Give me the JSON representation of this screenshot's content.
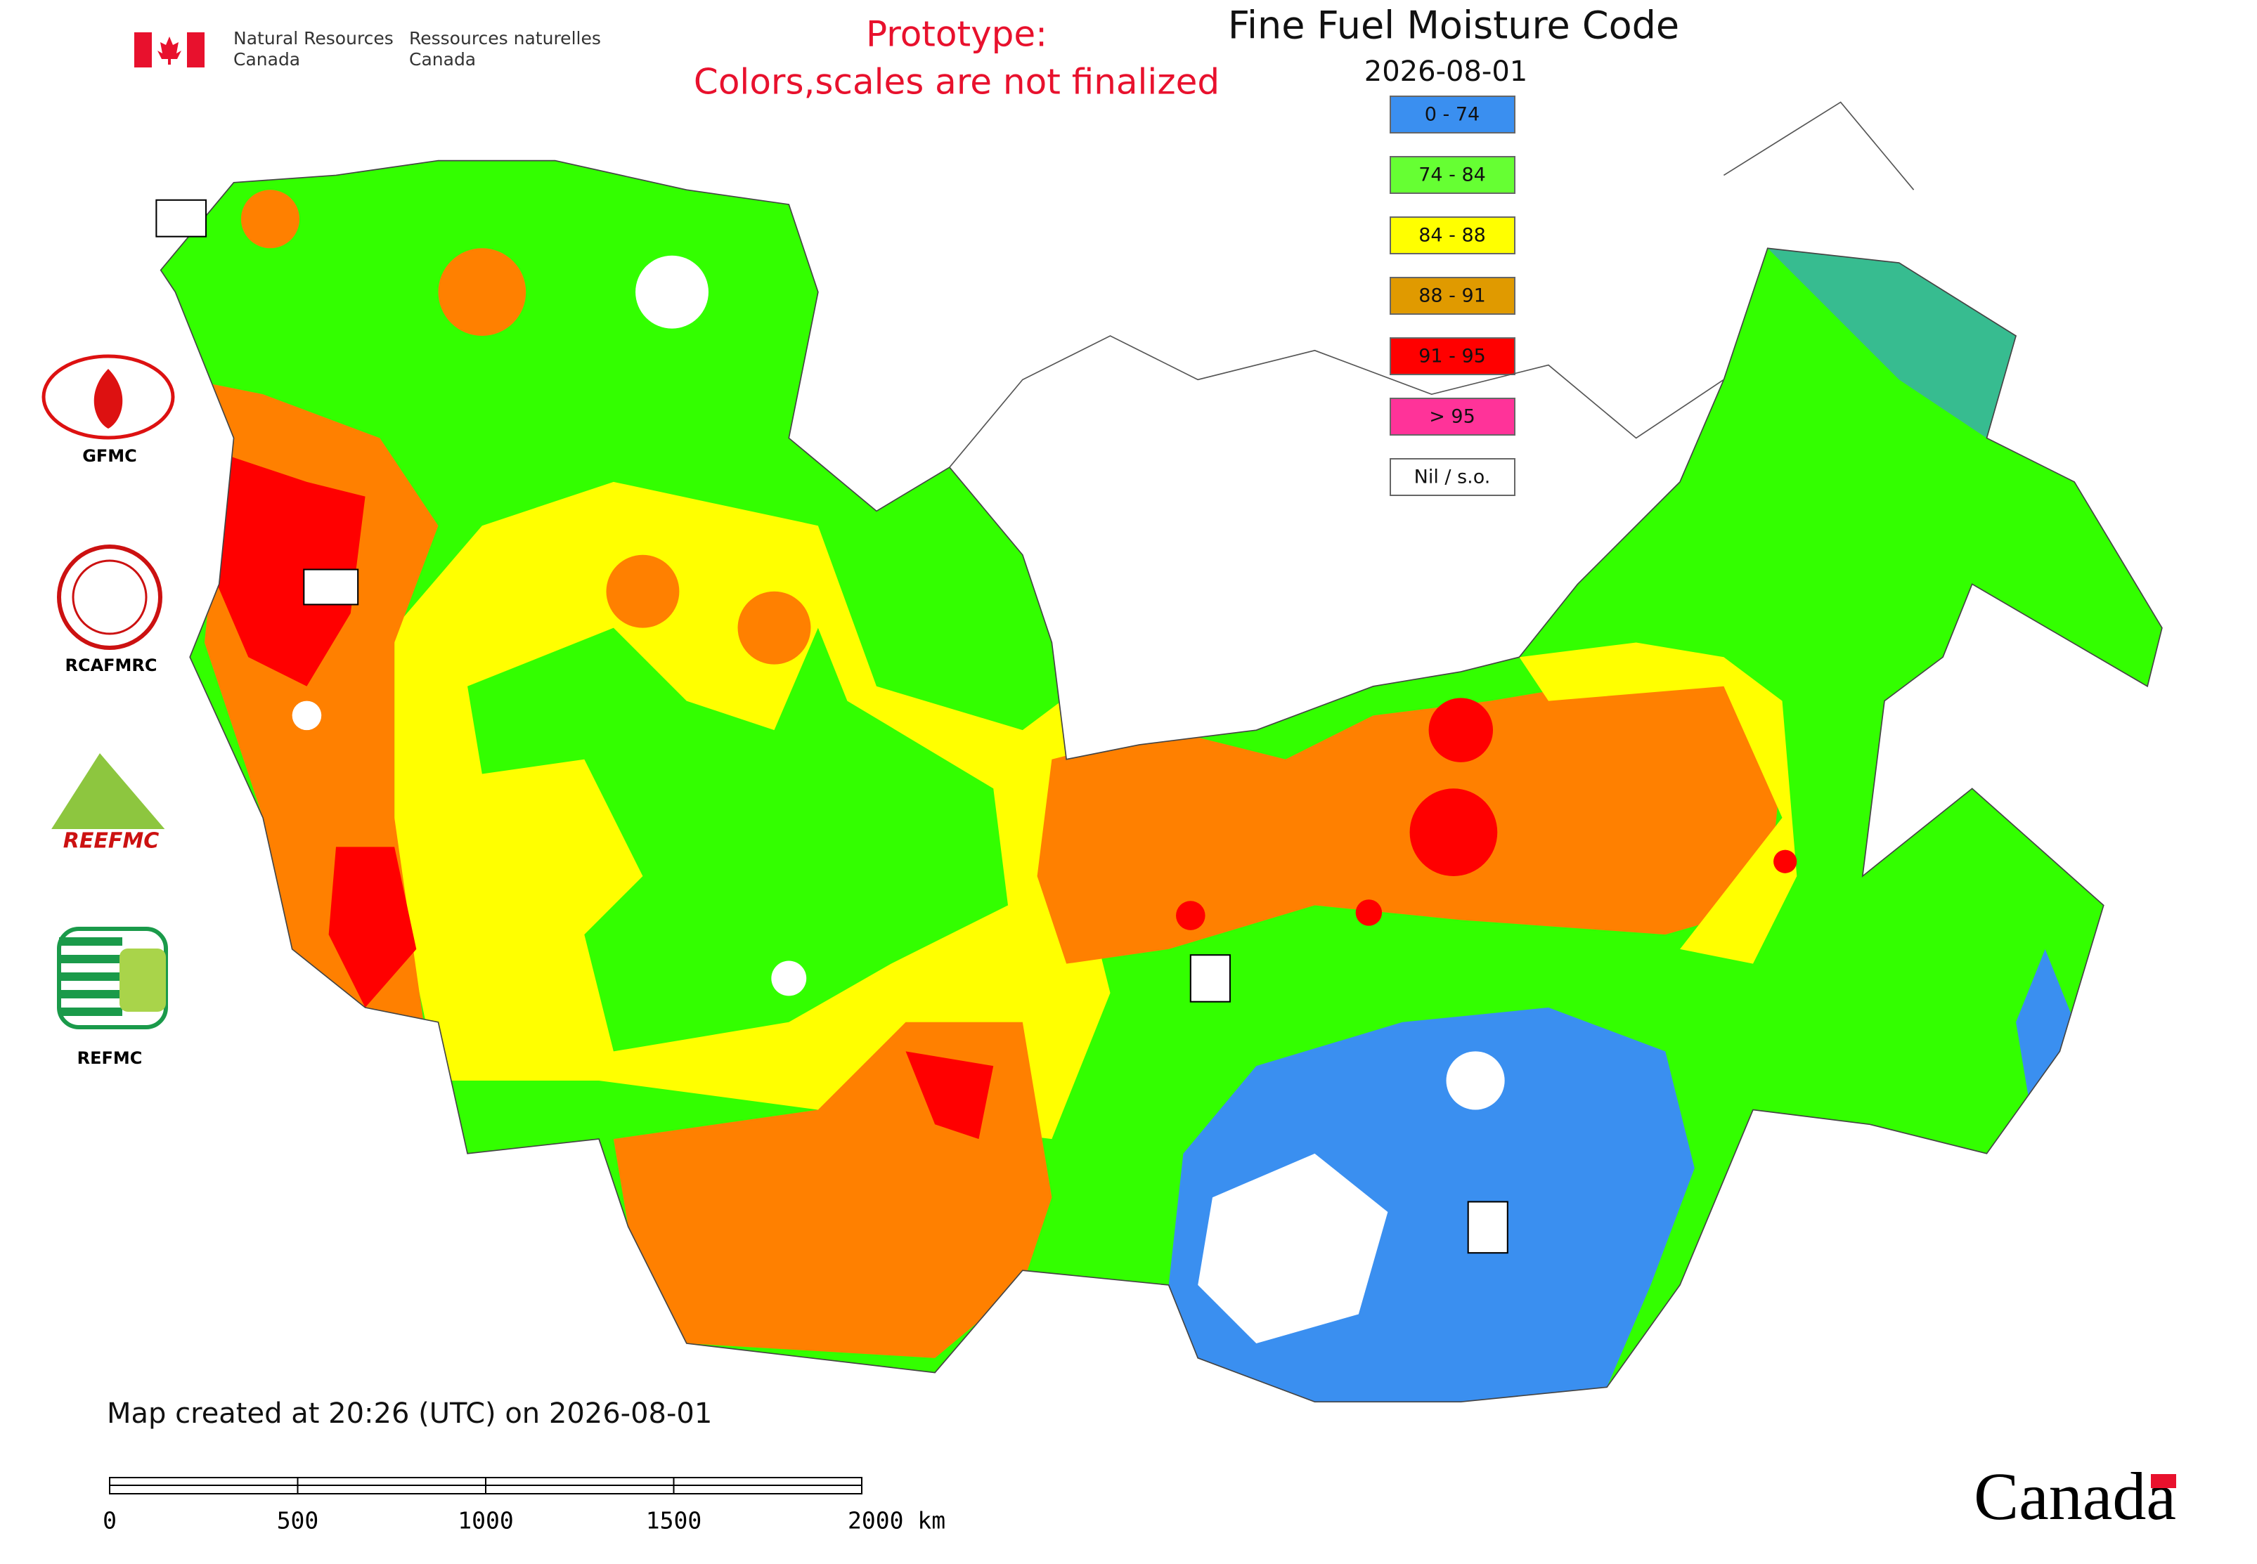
{
  "header": {
    "en_line1": "Natural Resources",
    "en_line2": "Canada",
    "fr_line1": "Ressources naturelles",
    "fr_line2": "Canada"
  },
  "notice": {
    "line1": "Prototype:",
    "line2": "Colors,scales are not finalized"
  },
  "map": {
    "title": "Fine Fuel Moisture Code",
    "date": "2026-08-01",
    "legend": [
      {
        "label": "0 - 74",
        "color": "#3a8ff0"
      },
      {
        "label": "74 - 84",
        "color": "#66ff33"
      },
      {
        "label": "84 - 88",
        "color": "#ffff00"
      },
      {
        "label": "88 - 91",
        "color": "#e09a00"
      },
      {
        "label": "91 - 95",
        "color": "#ff0000"
      },
      {
        "label": "> 95",
        "color": "#ff3399"
      },
      {
        "label": "Nil / s.o.",
        "color": "#ffffff"
      }
    ],
    "footer": "Map created at 20:26 (UTC) on 2026-08-01",
    "scale_bar": {
      "labels": [
        "0",
        "500",
        "1000",
        "1500",
        "2000 km"
      ]
    }
  },
  "partners": {
    "labels": [
      "GFMC",
      "RCAFMRC",
      "REFMC"
    ],
    "reefmc_logo_text": "REEFMC"
  },
  "wordmark": "Canada"
}
